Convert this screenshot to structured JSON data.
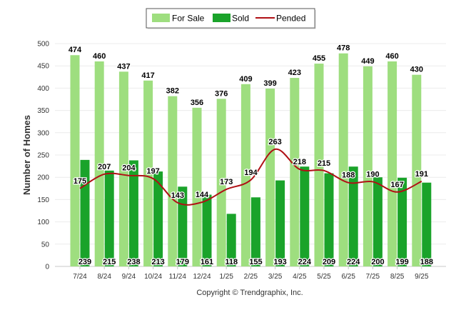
{
  "chart_data": {
    "type": "bar",
    "title": "",
    "xlabel": "",
    "ylabel": "Number of Homes",
    "ylim": [
      0,
      500
    ],
    "yticks": [
      0,
      50,
      100,
      150,
      200,
      250,
      300,
      350,
      400,
      450,
      500
    ],
    "grid": true,
    "legend_position": "top-center",
    "categories": [
      "7/24",
      "8/24",
      "9/24",
      "10/24",
      "11/24",
      "12/24",
      "1/25",
      "2/25",
      "3/25",
      "4/25",
      "5/25",
      "6/25",
      "7/25",
      "8/25",
      "9/25"
    ],
    "series": [
      {
        "name": "For Sale",
        "kind": "bar",
        "color": "#9ede7f",
        "values": [
          474,
          460,
          437,
          417,
          382,
          356,
          376,
          409,
          399,
          423,
          455,
          478,
          449,
          460,
          430
        ]
      },
      {
        "name": "Sold",
        "kind": "bar",
        "color": "#1aa32a",
        "values": [
          239,
          215,
          238,
          213,
          179,
          161,
          118,
          155,
          193,
          224,
          209,
          224,
          200,
          199,
          188
        ]
      },
      {
        "name": "Pended",
        "kind": "line",
        "color": "#b01015",
        "values": [
          175,
          207,
          204,
          197,
          143,
          144,
          173,
          194,
          263,
          218,
          215,
          188,
          190,
          167,
          191
        ]
      }
    ],
    "footer": "Copyright © Trendgraphix, Inc."
  }
}
